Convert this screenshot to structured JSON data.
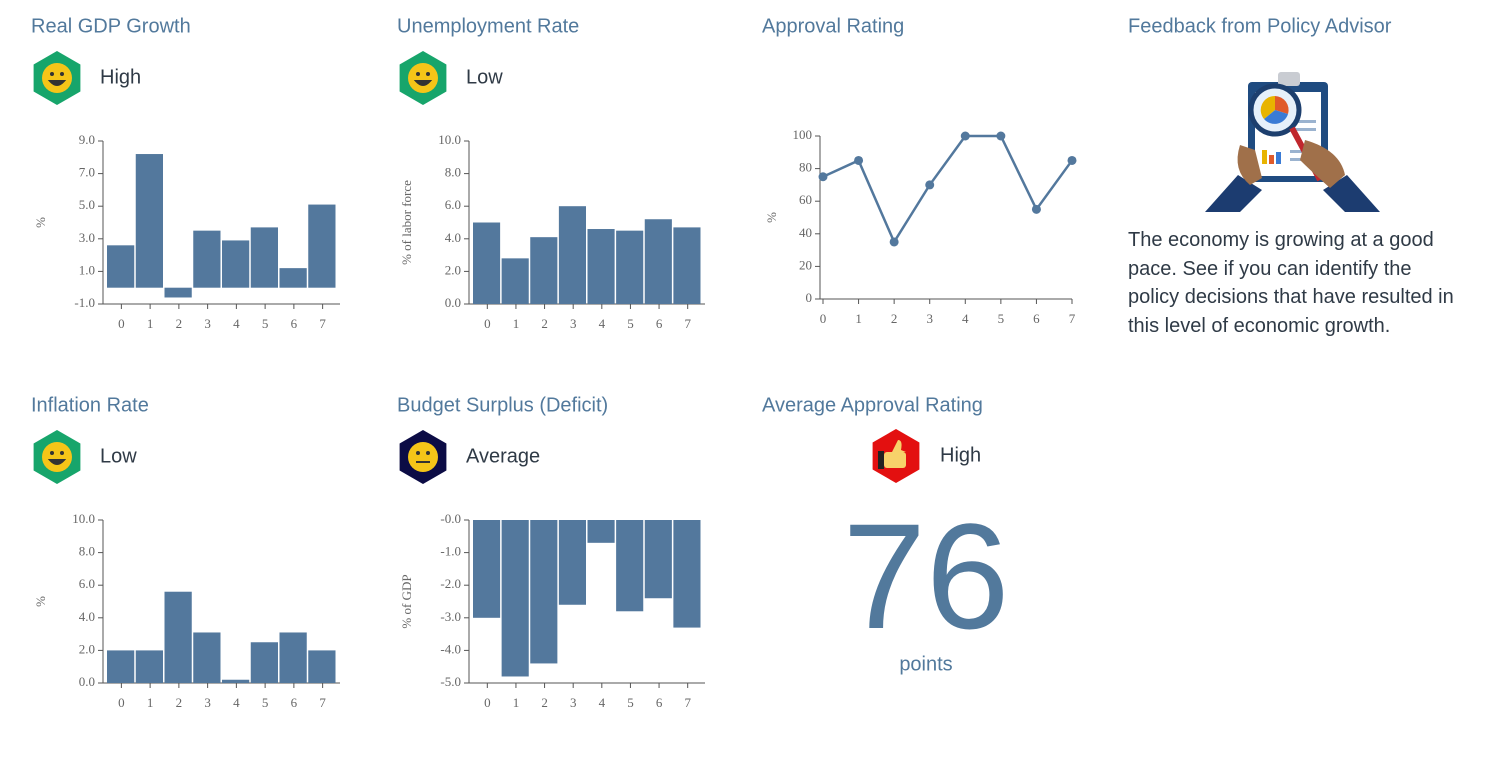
{
  "chart_data": [
    {
      "type": "bar",
      "title": "Real GDP Growth",
      "status": "High",
      "y_label": "%",
      "categories": [
        "0",
        "1",
        "2",
        "3",
        "4",
        "5",
        "6",
        "7"
      ],
      "values": [
        2.6,
        8.2,
        -0.6,
        3.5,
        2.9,
        3.7,
        1.2,
        5.1
      ],
      "color": "#53789d",
      "ylim": [
        -1,
        9
      ],
      "yticks": [
        {
          "value": -1,
          "label": "-1.0"
        },
        {
          "value": 1,
          "label": "1.0"
        },
        {
          "value": 3,
          "label": "3.0"
        },
        {
          "value": 5,
          "label": "5.0"
        },
        {
          "value": 7,
          "label": "7.0"
        },
        {
          "value": 9,
          "label": "9.0"
        }
      ],
      "grid": false
    },
    {
      "type": "bar",
      "title": "Unemployment Rate",
      "status": "Low",
      "y_label": "% of labor force",
      "categories": [
        "0",
        "1",
        "2",
        "3",
        "4",
        "5",
        "6",
        "7"
      ],
      "values": [
        5.0,
        2.8,
        4.1,
        6.0,
        4.6,
        4.5,
        5.2,
        4.7
      ],
      "color": "#53789d",
      "ylim": [
        0,
        10
      ],
      "yticks": [
        {
          "value": 0,
          "label": "0.0"
        },
        {
          "value": 2,
          "label": "2.0"
        },
        {
          "value": 4,
          "label": "4.0"
        },
        {
          "value": 6,
          "label": "6.0"
        },
        {
          "value": 8,
          "label": "8.0"
        },
        {
          "value": 10,
          "label": "10.0"
        }
      ],
      "grid": false
    },
    {
      "type": "line",
      "title": "Approval Rating",
      "y_label": "%",
      "x": [
        0,
        1,
        2,
        3,
        4,
        5,
        6,
        7
      ],
      "values": [
        75,
        85,
        35,
        70,
        100,
        100,
        55,
        85
      ],
      "color": "#53789d",
      "xlim": [
        0,
        7
      ],
      "xticks": [
        0,
        1,
        2,
        3,
        4,
        5,
        6,
        7
      ],
      "ylim": [
        0,
        100
      ],
      "yticks": [
        0,
        20,
        40,
        60,
        80,
        100
      ],
      "grid": false
    },
    {
      "type": "bar",
      "title": "Inflation Rate",
      "status": "Low",
      "y_label": "%",
      "categories": [
        "0",
        "1",
        "2",
        "3",
        "4",
        "5",
        "6",
        "7"
      ],
      "values": [
        2.0,
        2.0,
        5.6,
        3.1,
        0.2,
        2.5,
        3.1,
        2.0
      ],
      "color": "#53789d",
      "ylim": [
        0,
        10
      ],
      "yticks": [
        {
          "value": 0,
          "label": "0.0"
        },
        {
          "value": 2,
          "label": "2.0"
        },
        {
          "value": 4,
          "label": "4.0"
        },
        {
          "value": 6,
          "label": "6.0"
        },
        {
          "value": 8,
          "label": "8.0"
        },
        {
          "value": 10,
          "label": "10.0"
        }
      ],
      "grid": false
    },
    {
      "type": "bar",
      "title": "Budget Surplus (Deficit)",
      "status": "Average",
      "y_label": "% of GDP",
      "categories": [
        "0",
        "1",
        "2",
        "3",
        "4",
        "5",
        "6",
        "7"
      ],
      "values": [
        -3.0,
        -4.8,
        -4.4,
        -2.6,
        -0.7,
        -2.8,
        -2.4,
        -3.3
      ],
      "color": "#53789d",
      "ylim": [
        -5,
        0
      ],
      "yticks": [
        {
          "value": -5,
          "label": "-5.0"
        },
        {
          "value": -4,
          "label": "-4.0"
        },
        {
          "value": -3,
          "label": "-3.0"
        },
        {
          "value": -2,
          "label": "-2.0"
        },
        {
          "value": -1,
          "label": "-1.0"
        },
        {
          "value": 0,
          "label": "-0.0"
        }
      ],
      "grid": false
    }
  ],
  "approval_summary": {
    "title": "Average Approval Rating",
    "status": "High",
    "value": 76,
    "unit": "points"
  },
  "feedback": {
    "title": "Feedback from Policy Advisor",
    "text": "The economy is growing at a good pace. See if you can identify the policy decisions that have resulted in this level of economic growth."
  }
}
